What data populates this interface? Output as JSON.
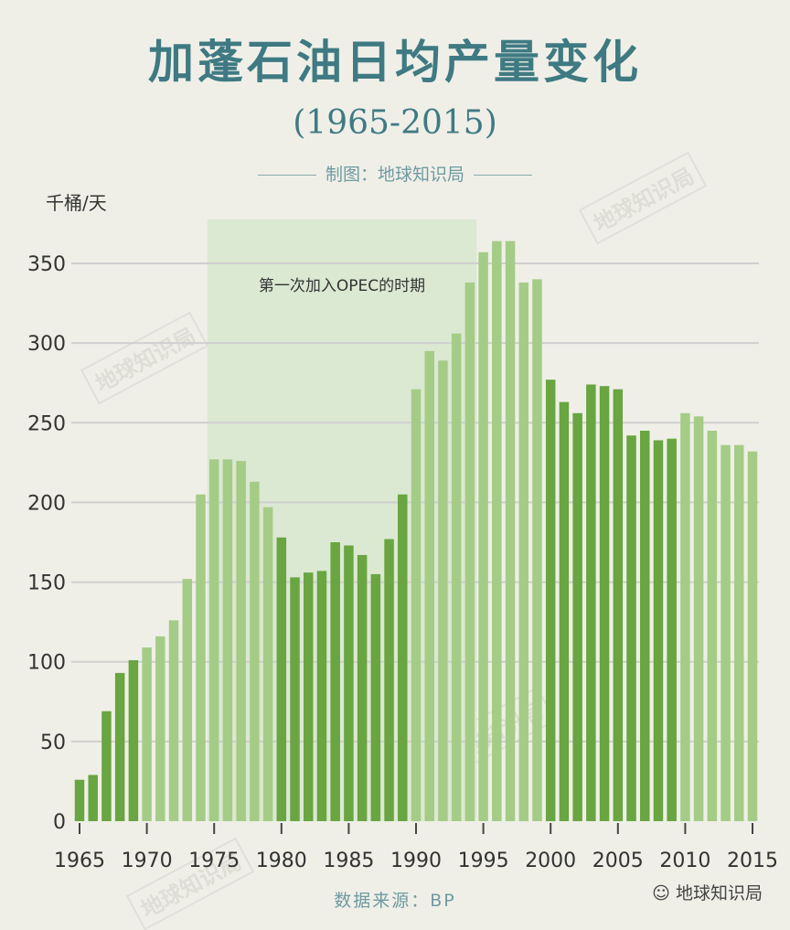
{
  "header": {
    "title": "加蓬石油日均产量变化",
    "subtitle": "(1965-2015)",
    "credit": "制图：地球知识局"
  },
  "footer": {
    "source": "数据来源：BP",
    "brand": "地球知识局"
  },
  "watermark_text": "地球知识局",
  "colors": {
    "bar_dark": "#69a540",
    "bar_light": "#a5cc86",
    "highlight": "#dbe8d2",
    "grid": "#cfcfcf",
    "title": "#3f7a82"
  },
  "chart_data": {
    "type": "bar",
    "ylabel": "千桶/天",
    "ylim": [
      0,
      370
    ],
    "yticks": [
      0,
      50,
      100,
      150,
      200,
      250,
      300,
      350
    ],
    "xticks": [
      1965,
      1970,
      1975,
      1980,
      1985,
      1990,
      1995,
      2000,
      2005,
      2010,
      2015
    ],
    "grid": true,
    "years": [
      1965,
      1966,
      1967,
      1968,
      1969,
      1970,
      1971,
      1972,
      1973,
      1974,
      1975,
      1976,
      1977,
      1978,
      1979,
      1980,
      1981,
      1982,
      1983,
      1984,
      1985,
      1986,
      1987,
      1988,
      1989,
      1990,
      1991,
      1992,
      1993,
      1994,
      1995,
      1996,
      1997,
      1998,
      1999,
      2000,
      2001,
      2002,
      2003,
      2004,
      2005,
      2006,
      2007,
      2008,
      2009,
      2010,
      2011,
      2012,
      2013,
      2014,
      2015
    ],
    "values": [
      26,
      29,
      69,
      93,
      101,
      109,
      116,
      126,
      152,
      205,
      227,
      227,
      226,
      213,
      197,
      178,
      153,
      156,
      157,
      175,
      173,
      167,
      155,
      177,
      205,
      271,
      295,
      289,
      306,
      338,
      357,
      364,
      364,
      338,
      340,
      277,
      263,
      256,
      274,
      273,
      271,
      242,
      245,
      239,
      240,
      256,
      254,
      245,
      236,
      236,
      232
    ],
    "shades": [
      "dark",
      "dark",
      "dark",
      "dark",
      "dark",
      "light",
      "light",
      "light",
      "light",
      "light",
      "light",
      "light",
      "light",
      "light",
      "light",
      "dark",
      "dark",
      "dark",
      "dark",
      "dark",
      "dark",
      "dark",
      "dark",
      "dark",
      "dark",
      "light",
      "light",
      "light",
      "light",
      "light",
      "light",
      "light",
      "light",
      "light",
      "light",
      "dark",
      "dark",
      "dark",
      "dark",
      "dark",
      "dark",
      "dark",
      "dark",
      "dark",
      "dark",
      "light",
      "light",
      "light",
      "light",
      "light",
      "light"
    ],
    "annotation": {
      "text": "第一次加入OPEC的时期",
      "start_year": 1975,
      "end_year": 1994
    }
  }
}
